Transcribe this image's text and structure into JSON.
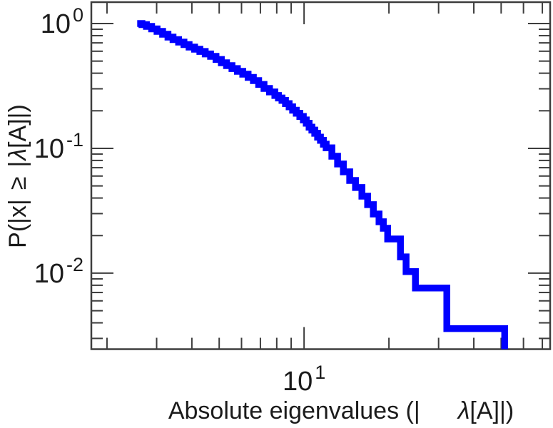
{
  "figure": {
    "background_color": "#ffffff",
    "axis_color": "#3d3d3d",
    "text_color": "#1b1b1b"
  },
  "chart_data": {
    "type": "line",
    "subtype": "ccdf-step-log-log",
    "title": "",
    "xlabel": "Absolute eigenvalues (| λ[A]|)",
    "ylabel": "P(|x| ≥ |λ[A]|)",
    "xscale": "log",
    "yscale": "log",
    "xlim": [
      1.76,
      74.6
    ],
    "ylim": [
      0.00246,
      1.484
    ],
    "grid": false,
    "legend": "none",
    "x_major_ticks": [
      10
    ],
    "x_minor_ticks": [
      2,
      3,
      4,
      5,
      6,
      7,
      8,
      9,
      20,
      30,
      40,
      50,
      60,
      70
    ],
    "y_major_ticks": [
      1,
      0.1,
      0.01
    ],
    "y_minor_ticks": [
      0.9,
      0.8,
      0.7,
      0.6,
      0.5,
      0.4,
      0.3,
      0.2,
      0.09,
      0.08,
      0.07,
      0.06,
      0.05,
      0.04,
      0.03,
      0.02,
      0.009,
      0.008,
      0.007,
      0.006,
      0.005,
      0.004,
      0.003
    ],
    "x_tick_labels": [
      {
        "value": 10,
        "base": "10",
        "exp": "1"
      }
    ],
    "y_tick_labels": [
      {
        "value": 1,
        "base": "10",
        "exp": "0"
      },
      {
        "value": 0.1,
        "base": "10",
        "exp": "-1"
      },
      {
        "value": 0.01,
        "base": "10",
        "exp": "-2"
      }
    ],
    "x_label_parts": [
      {
        "t": "Absolute eigenvalues (|"
      },
      {
        "t": "λ",
        "italic": true,
        "dx": 53
      },
      {
        "t": "[A]|)"
      }
    ],
    "y_label_parts": [
      {
        "t": "P(|x|"
      },
      {
        "t": "≥",
        "dx": 13
      },
      {
        "t": "|",
        "dx": 13
      },
      {
        "t": "λ",
        "italic": true,
        "dx": 1
      },
      {
        "t": "[A]|)"
      }
    ],
    "series": [
      {
        "name": "eigenvalue-ccdf",
        "color": "#0000ff",
        "steps": [
          [
            2.56,
            1.0
          ],
          [
            2.66,
            0.98
          ],
          [
            2.76,
            0.949
          ],
          [
            2.88,
            0.906
          ],
          [
            3.01,
            0.865
          ],
          [
            3.15,
            0.821
          ],
          [
            3.29,
            0.779
          ],
          [
            3.43,
            0.744
          ],
          [
            3.59,
            0.71
          ],
          [
            3.75,
            0.678
          ],
          [
            3.91,
            0.648
          ],
          [
            4.09,
            0.623
          ],
          [
            4.27,
            0.598
          ],
          [
            4.46,
            0.571
          ],
          [
            4.66,
            0.546
          ],
          [
            4.87,
            0.515
          ],
          [
            5.09,
            0.485
          ],
          [
            5.31,
            0.46
          ],
          [
            5.55,
            0.436
          ],
          [
            5.8,
            0.414
          ],
          [
            6.06,
            0.393
          ],
          [
            6.33,
            0.37
          ],
          [
            6.61,
            0.349
          ],
          [
            6.9,
            0.325
          ],
          [
            7.21,
            0.302
          ],
          [
            7.54,
            0.283
          ],
          [
            7.88,
            0.265
          ],
          [
            8.11,
            0.253
          ],
          [
            8.35,
            0.242
          ],
          [
            8.59,
            0.228
          ],
          [
            8.85,
            0.215
          ],
          [
            9.11,
            0.202
          ],
          [
            9.38,
            0.191
          ],
          [
            9.66,
            0.18
          ],
          [
            9.94,
            0.169
          ],
          [
            10.18,
            0.159
          ],
          [
            10.42,
            0.148
          ],
          [
            10.66,
            0.14
          ],
          [
            10.91,
            0.132
          ],
          [
            11.17,
            0.123
          ],
          [
            11.43,
            0.116
          ],
          [
            11.71,
            0.108
          ],
          [
            11.98,
            0.101
          ],
          [
            12.55,
            0.0865
          ],
          [
            13.15,
            0.0749
          ],
          [
            13.78,
            0.0648
          ],
          [
            14.52,
            0.0553
          ],
          [
            15.22,
            0.0485
          ],
          [
            16.04,
            0.0414
          ],
          [
            16.8,
            0.0354
          ],
          [
            17.6,
            0.0298
          ],
          [
            18.45,
            0.0258
          ],
          [
            19.1,
            0.0229
          ],
          [
            19.79,
            0.0188
          ],
          [
            21.97,
            0.0135
          ],
          [
            23.01,
            0.0103
          ],
          [
            24.83,
            0.0076
          ],
          [
            32.08,
            0.0036
          ],
          [
            51.47,
            0.002
          ]
        ]
      }
    ]
  }
}
